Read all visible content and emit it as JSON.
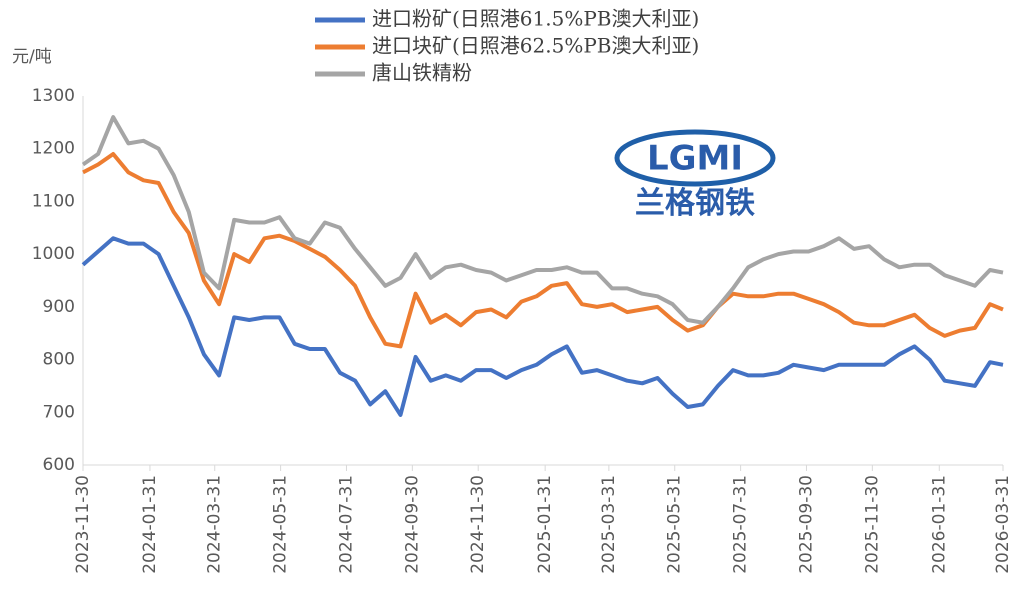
{
  "chart_data": {
    "type": "line",
    "y_label": "元/吨",
    "watermark": {
      "logo": "LGMI",
      "text": "兰格钢铁"
    },
    "x": [
      "2023-11-30",
      "2023-12-14",
      "2023-12-28",
      "2024-01-11",
      "2024-01-25",
      "2024-02-08",
      "2024-02-22",
      "2024-03-07",
      "2024-03-21",
      "2024-04-04",
      "2024-04-18",
      "2024-05-02",
      "2024-05-16",
      "2024-05-30",
      "2024-06-13",
      "2024-06-27",
      "2024-07-11",
      "2024-07-25",
      "2024-08-08",
      "2024-08-22",
      "2024-09-05",
      "2024-09-19",
      "2024-10-03",
      "2024-10-17",
      "2024-10-31",
      "2024-11-14",
      "2024-11-28",
      "2024-12-12",
      "2024-12-26",
      "2025-01-09",
      "2025-01-23",
      "2025-02-06",
      "2025-02-20",
      "2025-03-06",
      "2025-03-20",
      "2025-04-03",
      "2025-04-17",
      "2025-05-01",
      "2025-05-15",
      "2025-05-29",
      "2025-06-12",
      "2025-06-26",
      "2025-07-10",
      "2025-07-24",
      "2025-08-07",
      "2025-08-21",
      "2025-09-04",
      "2025-09-18",
      "2025-10-02",
      "2025-10-16",
      "2025-10-30",
      "2025-11-13",
      "2025-11-27",
      "2025-12-11",
      "2025-12-25",
      "2026-01-08",
      "2026-01-22",
      "2026-02-05",
      "2026-02-19",
      "2026-03-05",
      "2026-03-19",
      "2026-03-31"
    ],
    "series": [
      {
        "name": "进口粉矿(日照港61.5%PB澳大利亚)",
        "color": "#4472c4",
        "values": [
          980,
          1005,
          1030,
          1020,
          1020,
          1000,
          940,
          880,
          810,
          770,
          880,
          875,
          880,
          880,
          830,
          820,
          820,
          775,
          760,
          715,
          740,
          695,
          805,
          760,
          770,
          760,
          780,
          780,
          765,
          780,
          790,
          810,
          825,
          775,
          780,
          770,
          760,
          755,
          765,
          735,
          710,
          715,
          750,
          780,
          770,
          770,
          775,
          790,
          785,
          780,
          790,
          790,
          790,
          790,
          810,
          825,
          800,
          760,
          755,
          750,
          795,
          790
        ]
      },
      {
        "name": "进口块矿(日照港62.5%PB澳大利亚)",
        "color": "#ed7d31",
        "values": [
          1155,
          1170,
          1190,
          1155,
          1140,
          1135,
          1080,
          1040,
          950,
          905,
          1000,
          985,
          1030,
          1035,
          1025,
          1010,
          995,
          970,
          940,
          880,
          830,
          825,
          925,
          870,
          885,
          865,
          890,
          895,
          880,
          910,
          920,
          940,
          945,
          905,
          900,
          905,
          890,
          895,
          900,
          875,
          855,
          865,
          900,
          925,
          920,
          920,
          925,
          925,
          915,
          905,
          890,
          870,
          865,
          865,
          875,
          885,
          860,
          845,
          855,
          860,
          905,
          895
        ]
      },
      {
        "name": "唐山铁精粉",
        "color": "#a5a5a5",
        "values": [
          1170,
          1190,
          1260,
          1210,
          1215,
          1200,
          1150,
          1080,
          965,
          935,
          1065,
          1060,
          1060,
          1070,
          1030,
          1020,
          1060,
          1050,
          1010,
          975,
          940,
          955,
          1000,
          955,
          975,
          980,
          970,
          965,
          950,
          960,
          970,
          970,
          975,
          965,
          965,
          935,
          935,
          925,
          920,
          905,
          875,
          870,
          900,
          935,
          975,
          990,
          1000,
          1005,
          1005,
          1015,
          1030,
          1010,
          1015,
          990,
          975,
          980,
          980,
          960,
          950,
          940,
          970,
          965
        ]
      }
    ],
    "xlim": [
      "2023-11-30",
      "2026-03-31"
    ],
    "xticks": [
      "2023-11-30",
      "2024-01-31",
      "2024-03-31",
      "2024-05-31",
      "2024-07-31",
      "2024-09-30",
      "2024-11-30",
      "2025-01-31",
      "2025-03-31",
      "2025-05-31",
      "2025-07-31",
      "2025-09-30",
      "2025-11-30",
      "2026-01-31",
      "2026-03-31"
    ],
    "ylim": [
      600,
      1300
    ],
    "yticks": [
      600,
      700,
      800,
      900,
      1000,
      1100,
      1200,
      1300
    ],
    "grid": false
  }
}
